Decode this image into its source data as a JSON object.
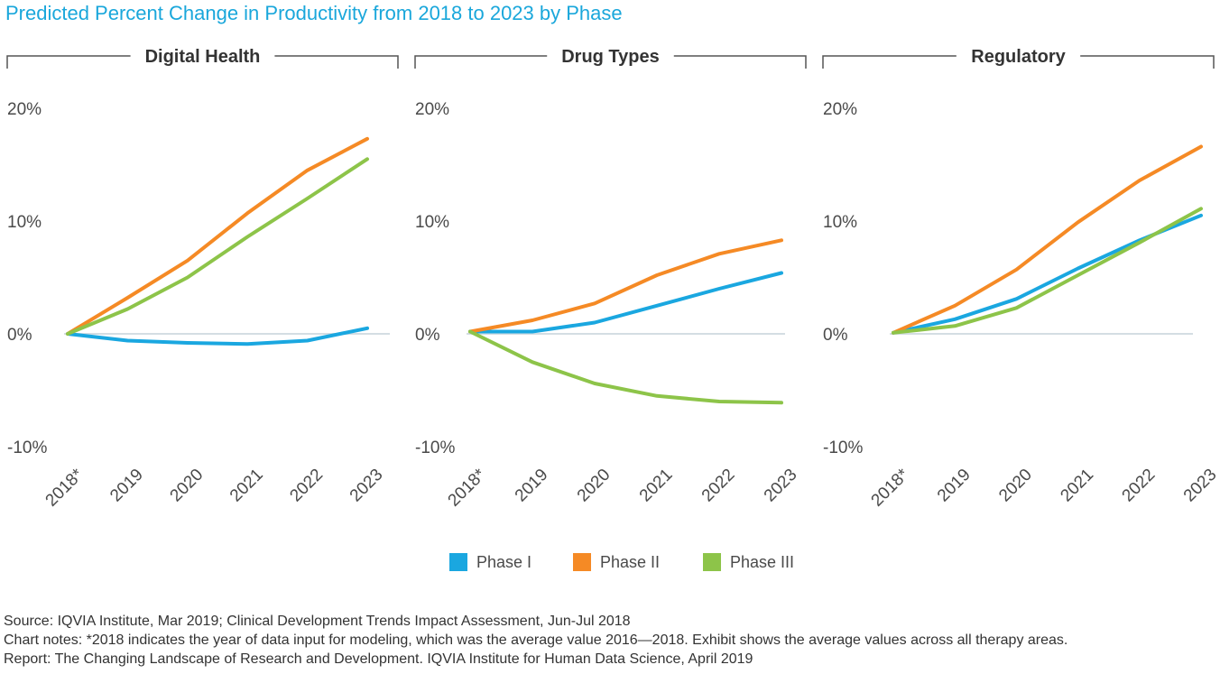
{
  "title": "Predicted Percent Change in Productivity from 2018 to 2023 by Phase",
  "colors": {
    "phase1": "#1aa7e0",
    "phase2": "#f58a25",
    "phase3": "#8dc449",
    "zero_line": "#d4dde3",
    "bracket": "#555555"
  },
  "legend": [
    {
      "label": "Phase I",
      "color": "#1aa7e0"
    },
    {
      "label": "Phase II",
      "color": "#f58a25"
    },
    {
      "label": "Phase III",
      "color": "#8dc449"
    }
  ],
  "chart_data": [
    {
      "type": "line",
      "title": "Digital Health",
      "categories": [
        "2018*",
        "2019",
        "2020",
        "2021",
        "2022",
        "2023"
      ],
      "yticks": [
        "20%",
        "10%",
        "0%",
        "-10%"
      ],
      "ylim": [
        -10,
        20
      ],
      "series": [
        {
          "name": "Phase I",
          "values": [
            0,
            -0.6,
            -0.8,
            -0.9,
            -0.6,
            0.5
          ]
        },
        {
          "name": "Phase II",
          "values": [
            0,
            3.2,
            6.5,
            10.7,
            14.5,
            17.3
          ]
        },
        {
          "name": "Phase III",
          "values": [
            0,
            2.2,
            5.0,
            8.6,
            12.0,
            15.5
          ]
        }
      ]
    },
    {
      "type": "line",
      "title": "Drug Types",
      "categories": [
        "2018*",
        "2019",
        "2020",
        "2021",
        "2022",
        "2023"
      ],
      "yticks": [
        "20%",
        "10%",
        "0%",
        "-10%"
      ],
      "ylim": [
        -10,
        20
      ],
      "series": [
        {
          "name": "Phase I",
          "values": [
            0.2,
            0.2,
            1.0,
            2.5,
            4.0,
            5.4
          ]
        },
        {
          "name": "Phase II",
          "values": [
            0.2,
            1.2,
            2.7,
            5.2,
            7.1,
            8.3
          ]
        },
        {
          "name": "Phase III",
          "values": [
            0.2,
            -2.5,
            -4.4,
            -5.5,
            -6.0,
            -6.1
          ]
        }
      ]
    },
    {
      "type": "line",
      "title": "Regulatory",
      "categories": [
        "2018*",
        "2019",
        "2020",
        "2021",
        "2022",
        "2023"
      ],
      "yticks": [
        "20%",
        "10%",
        "0%",
        "-10%"
      ],
      "ylim": [
        -10,
        20
      ],
      "series": [
        {
          "name": "Phase I",
          "values": [
            0.1,
            1.3,
            3.1,
            5.8,
            8.3,
            10.5
          ]
        },
        {
          "name": "Phase II",
          "values": [
            0.1,
            2.5,
            5.7,
            9.9,
            13.6,
            16.6
          ]
        },
        {
          "name": "Phase III",
          "values": [
            0.1,
            0.7,
            2.3,
            5.2,
            8.1,
            11.1
          ]
        }
      ]
    }
  ],
  "notes": {
    "source": "Source: IQVIA Institute, Mar 2019; Clinical Development Trends Impact Assessment, Jun-Jul 2018",
    "chart_notes": "Chart notes: *2018 indicates the year of data input for modeling, which was the average value 2016—2018. Exhibit shows the average values across all therapy areas.",
    "report": "Report: The Changing Landscape of Research and Development. IQVIA Institute for Human Data Science, April 2019"
  }
}
